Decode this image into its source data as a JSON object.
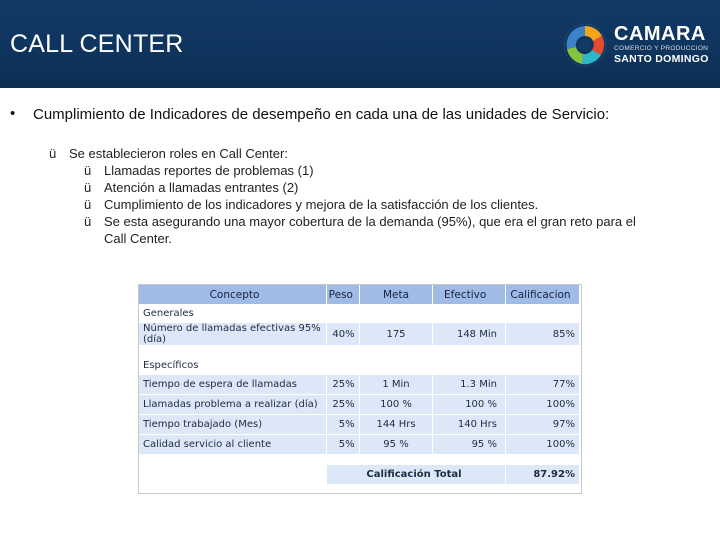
{
  "header": {
    "title": "CALL CENTER",
    "logo": {
      "brand": "CAMARA",
      "line1": "COMERCIO Y PRODUCCION",
      "line2": "SANTO DOMINGO"
    },
    "background_color": "#123a66"
  },
  "main_bullet": {
    "glyph": "•",
    "text": "Cumplimiento de Indicadores de desempeño en cada una de las unidades de Servicio:"
  },
  "roles": {
    "check_glyph": "ü",
    "intro": "Se establecieron roles en Call Center:",
    "items": [
      "Llamadas reportes de problemas (1)",
      "Atención a llamadas entrantes (2)",
      "Cumplimiento de los indicadores y mejora de la satisfacción de los clientes.",
      "Se esta asegurando una mayor cobertura de la demanda (95%), que era el gran reto para el",
      "Call Center."
    ]
  },
  "table": {
    "headers": [
      "Concepto",
      "Peso",
      "Meta",
      "Efectivo",
      "Calificacion"
    ],
    "general_label": "Generales",
    "general_rows": [
      [
        "Número de llamadas efectivas 95% (día)",
        "40%",
        "175",
        "148 Min",
        "85%"
      ]
    ],
    "specific_label": "Específicos",
    "specific_rows": [
      [
        "Tiempo de espera de llamadas",
        "25%",
        "1 Min",
        "1.3 Min",
        "77%"
      ],
      [
        "Llamadas problema a realizar (día)",
        "25%",
        "100 %",
        "100 %",
        "100%"
      ],
      [
        "Tiempo trabajado (Mes)",
        "5%",
        "144 Hrs",
        "140 Hrs",
        "97%"
      ],
      [
        "Calidad servicio al cliente",
        "5%",
        "95 %",
        "95 %",
        "100%"
      ]
    ],
    "total_label": "Calificación Total",
    "total_value": "87.92%",
    "header_color": "#9fbbe6",
    "row_color": "#dce8f7"
  }
}
